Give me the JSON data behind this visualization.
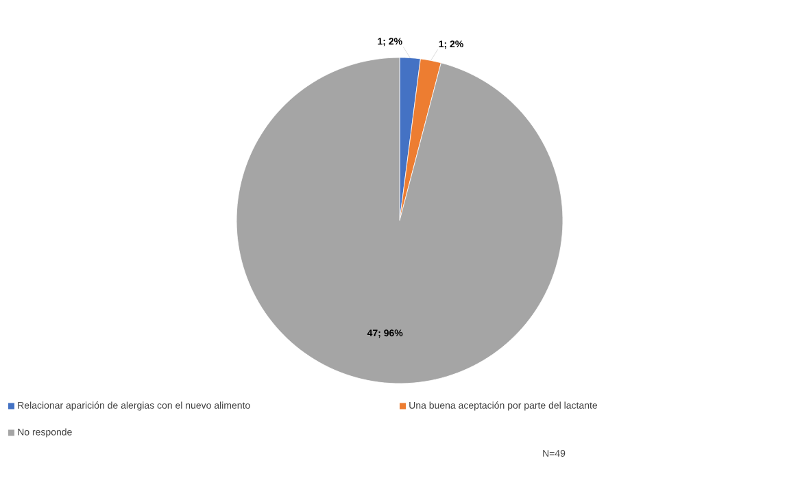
{
  "chart_data": {
    "type": "pie",
    "categories": [
      "Relacionar aparición de alergias con el nuevo alimento",
      "Una buena aceptación por parte del lactante",
      "No responde"
    ],
    "values": [
      1,
      1,
      47
    ],
    "colors": [
      "#4472c4",
      "#ed7d31",
      "#a5a5a5"
    ],
    "value_labels": [
      "1; 2%",
      "1; 2%",
      "47; 96%"
    ],
    "legend": "bottom",
    "annotations": [
      "N=49"
    ]
  }
}
